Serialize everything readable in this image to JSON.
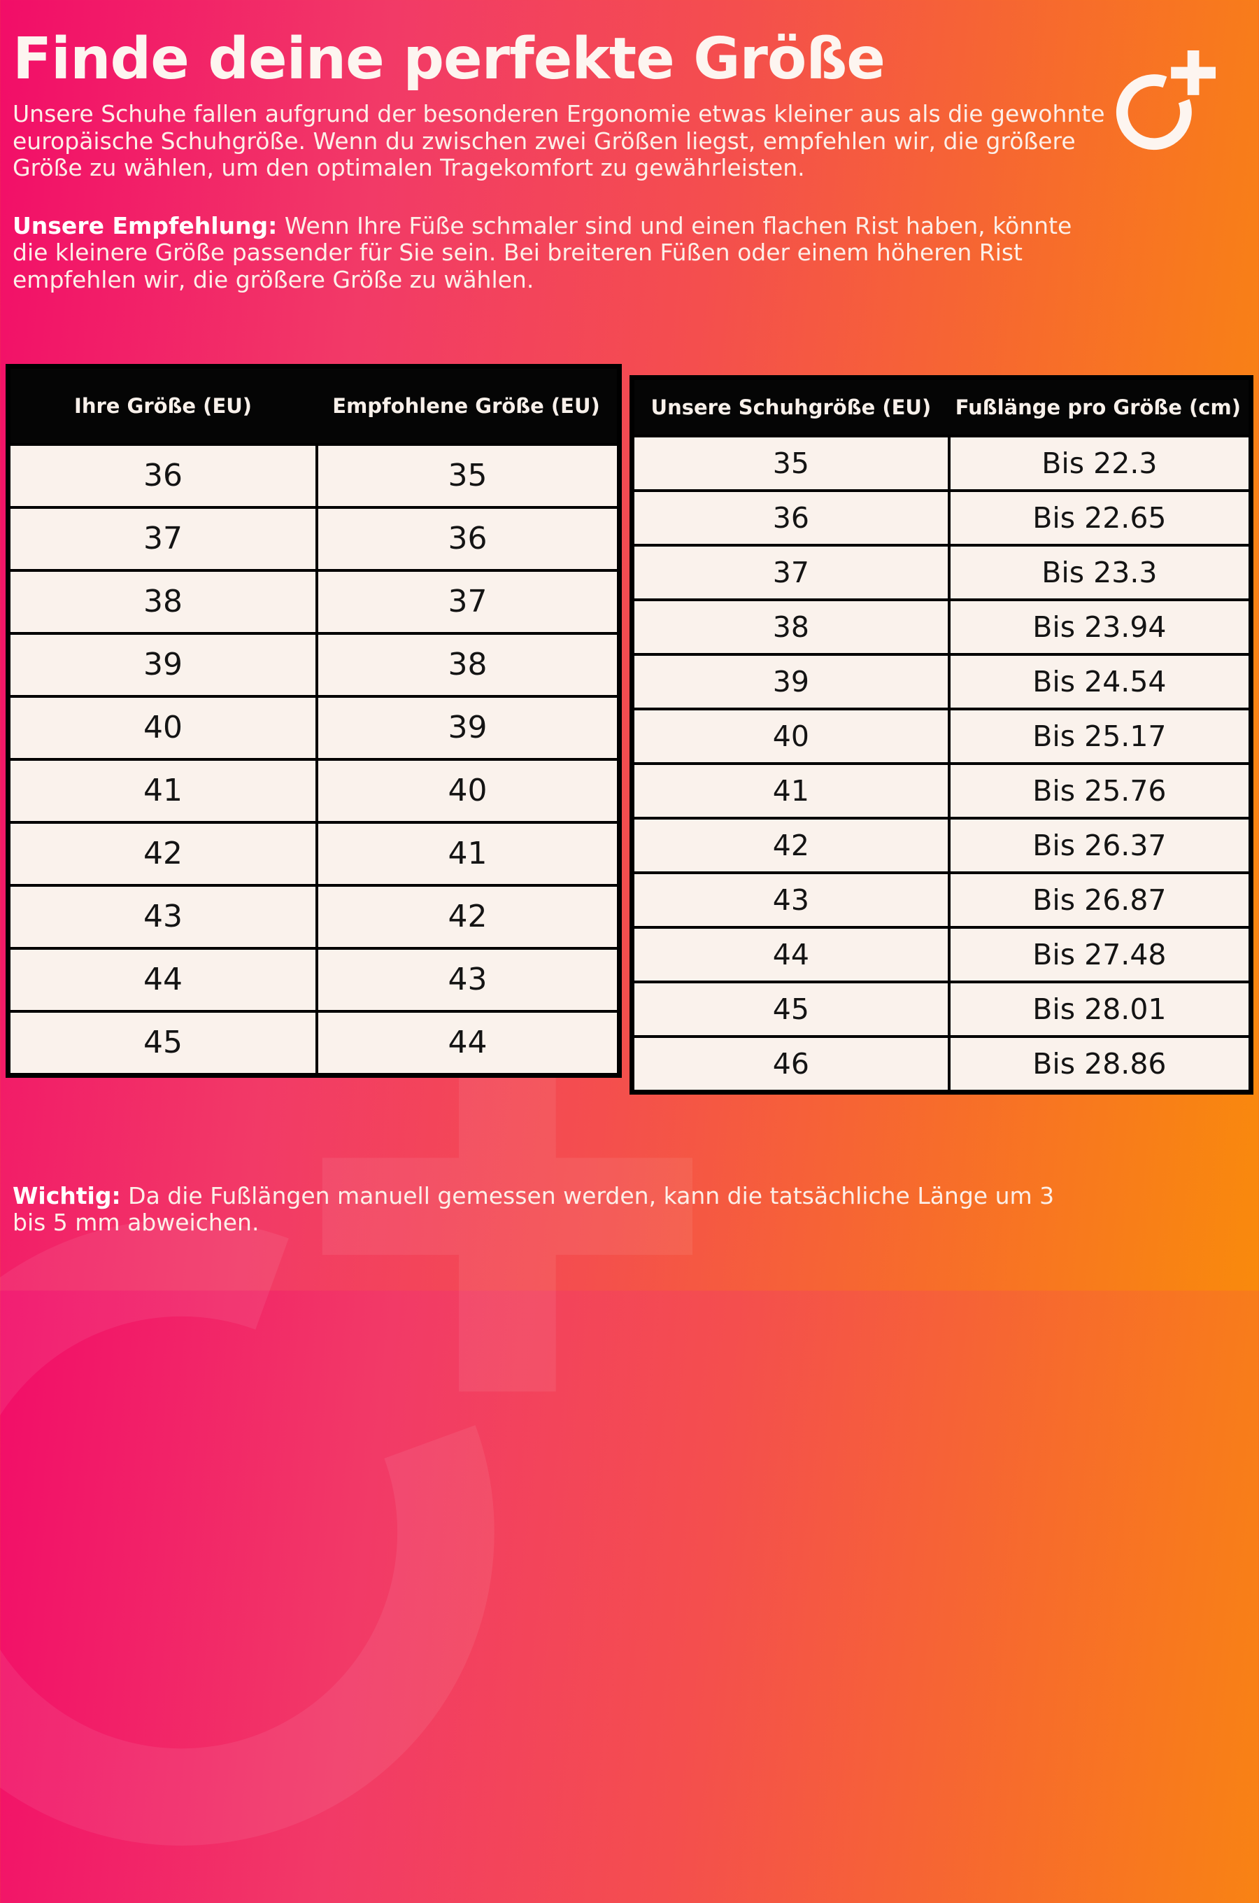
{
  "page": {
    "title": "Finde deine perfekte Größe",
    "intro": "Unsere Schuhe fallen aufgrund der besonderen Ergonomie etwas kleiner aus als die gewohnte europäische Schuhgröße. Wenn du zwischen zwei Größen liegst, empfehlen wir, die größere Größe zu wählen, um den optimalen Tragekomfort zu gewährleisten.",
    "recommendation_label": "Unsere Empfehlung:",
    "recommendation_text": " Wenn Ihre Füße schmaler sind und einen flachen Rist haben, könnte die kleinere Größe passender für Sie sein. Bei breiteren Füßen oder einem höheren Rist empfehlen wir, die größere Größe zu wählen.",
    "note_label": "Wichtig:",
    "note_text": " Da die Fußlängen manuell gemessen werden, kann die tatsächliche Länge um 3 bis 5 mm abweichen."
  },
  "logo": {
    "name": "o-plus-brand-logo"
  },
  "colors": {
    "gradient_start": "#f20d68",
    "gradient_mid": "#f44e4e",
    "gradient_end": "#f98a0c",
    "table_background": "#faf2ec",
    "table_border": "#000000",
    "header_background": "#050505",
    "header_text": "#f8f0ea",
    "cell_text": "#141414",
    "body_text": "#fcefe8"
  },
  "size_conversion_table": {
    "headers": [
      "Ihre Größe (EU)",
      "Empfohlene Größe (EU)"
    ],
    "rows": [
      [
        "36",
        "35"
      ],
      [
        "37",
        "36"
      ],
      [
        "38",
        "37"
      ],
      [
        "39",
        "38"
      ],
      [
        "40",
        "39"
      ],
      [
        "41",
        "40"
      ],
      [
        "42",
        "41"
      ],
      [
        "43",
        "42"
      ],
      [
        "44",
        "43"
      ],
      [
        "45",
        "44"
      ]
    ]
  },
  "foot_length_table": {
    "headers": [
      "Unsere Schuhgröße (EU)",
      "Fußlänge pro Größe (cm)"
    ],
    "rows": [
      [
        "35",
        "Bis 22.3"
      ],
      [
        "36",
        "Bis 22.65"
      ],
      [
        "37",
        "Bis 23.3"
      ],
      [
        "38",
        "Bis 23.94"
      ],
      [
        "39",
        "Bis 24.54"
      ],
      [
        "40",
        "Bis 25.17"
      ],
      [
        "41",
        "Bis 25.76"
      ],
      [
        "42",
        "Bis 26.37"
      ],
      [
        "43",
        "Bis 26.87"
      ],
      [
        "44",
        "Bis 27.48"
      ],
      [
        "45",
        "Bis 28.01"
      ],
      [
        "46",
        "Bis 28.86"
      ]
    ]
  }
}
